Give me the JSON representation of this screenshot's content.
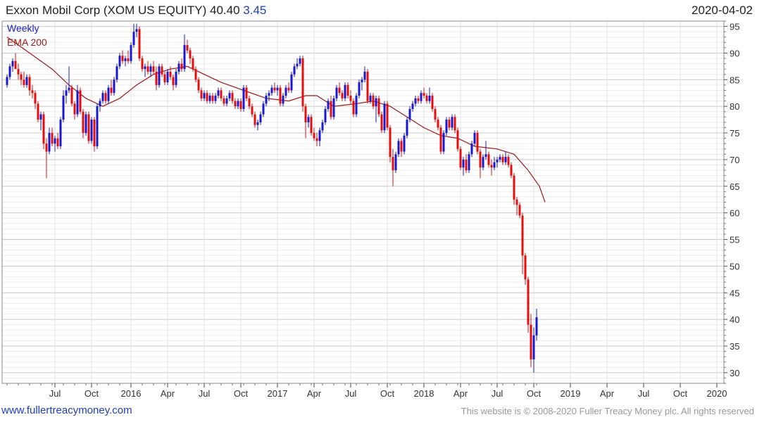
{
  "header": {
    "title": "Exxon Mobil Corp (XOM US EQUITY) 40.40",
    "change": "3.45",
    "date": "2020-04-02"
  },
  "footer": {
    "link": "www.fullertreacymoney.com",
    "copyright": "This website is © 2008-2020 Fuller Treacy Money plc. All rights reserved"
  },
  "colors": {
    "up": "#1a1acc",
    "down": "#e01010",
    "ema": "#a01818",
    "grid": "#d4d4d4"
  },
  "chart_data": {
    "type": "candlestick",
    "legend": [
      {
        "label": "Weekly",
        "color": "#1a1acc"
      },
      {
        "label": "EMA 200",
        "color": "#a01818"
      }
    ],
    "legend_position": "top-left",
    "grid": true,
    "ylim": [
      28,
      96
    ],
    "y_ticks": [
      30,
      35,
      40,
      45,
      50,
      55,
      60,
      65,
      70,
      75,
      80,
      85,
      90,
      95
    ],
    "x_ticks": [
      "Jul",
      "Oct",
      "2016",
      "Apr",
      "Jul",
      "Oct",
      "2017",
      "Apr",
      "Jul",
      "Oct",
      "2018",
      "Apr",
      "Jul",
      "Oct",
      "2019",
      "Apr",
      "Jul",
      "Oct",
      "2020"
    ],
    "x_tick_weeks": [
      17,
      30,
      44,
      57,
      70,
      83,
      96,
      109,
      122,
      135,
      148,
      161,
      174,
      187,
      200,
      213,
      226,
      239,
      252
    ],
    "candles": [
      [
        84.0,
        86.0,
        83.5,
        85.5
      ],
      [
        85.5,
        88.0,
        85.0,
        87.5
      ],
      [
        87.5,
        89.0,
        86.5,
        88.5
      ],
      [
        88.5,
        90.0,
        87.0,
        87.0
      ],
      [
        87.0,
        88.0,
        85.0,
        86.0
      ],
      [
        86.0,
        86.5,
        84.0,
        85.0
      ],
      [
        85.0,
        86.5,
        83.5,
        84.0
      ],
      [
        84.0,
        86.0,
        83.5,
        85.5
      ],
      [
        85.5,
        86.0,
        82.0,
        83.0
      ],
      [
        83.0,
        84.0,
        81.5,
        82.5
      ],
      [
        82.5,
        83.0,
        79.5,
        80.5
      ],
      [
        80.5,
        81.0,
        77.0,
        77.5
      ],
      [
        77.5,
        79.0,
        75.5,
        78.5
      ],
      [
        78.5,
        79.0,
        72.0,
        73.0
      ],
      [
        73.0,
        74.0,
        66.5,
        71.5
      ],
      [
        71.5,
        76.0,
        71.0,
        75.0
      ],
      [
        75.0,
        76.0,
        72.5,
        73.0
      ],
      [
        73.0,
        74.5,
        71.5,
        74.0
      ],
      [
        74.0,
        75.0,
        72.0,
        72.5
      ],
      [
        72.5,
        78.0,
        72.0,
        77.5
      ],
      [
        77.5,
        83.0,
        77.0,
        82.0
      ],
      [
        82.0,
        84.0,
        80.5,
        83.0
      ],
      [
        83.0,
        87.5,
        82.5,
        83.5
      ],
      [
        83.5,
        84.0,
        80.0,
        80.5
      ],
      [
        80.5,
        81.0,
        77.5,
        78.5
      ],
      [
        78.5,
        84.0,
        78.0,
        83.0
      ],
      [
        83.0,
        83.5,
        78.5,
        79.0
      ],
      [
        79.0,
        79.5,
        74.0,
        75.0
      ],
      [
        75.0,
        79.0,
        74.5,
        78.5
      ],
      [
        78.5,
        79.0,
        73.0,
        73.5
      ],
      [
        73.5,
        78.0,
        73.0,
        77.5
      ],
      [
        77.5,
        78.0,
        71.5,
        72.5
      ],
      [
        72.5,
        80.5,
        72.0,
        80.0
      ],
      [
        80.0,
        81.5,
        79.0,
        81.0
      ],
      [
        81.0,
        83.0,
        80.5,
        82.5
      ],
      [
        82.5,
        83.0,
        80.5,
        81.0
      ],
      [
        81.0,
        84.0,
        80.5,
        83.5
      ],
      [
        83.5,
        85.0,
        82.0,
        82.5
      ],
      [
        82.5,
        85.5,
        82.0,
        85.0
      ],
      [
        85.0,
        88.0,
        84.5,
        87.5
      ],
      [
        87.5,
        90.0,
        87.0,
        89.5
      ],
      [
        89.5,
        90.5,
        88.0,
        88.5
      ],
      [
        88.5,
        89.5,
        87.5,
        89.0
      ],
      [
        89.0,
        90.5,
        88.0,
        88.5
      ],
      [
        88.5,
        92.0,
        88.0,
        91.5
      ],
      [
        91.5,
        95.5,
        91.0,
        94.0
      ],
      [
        94.0,
        95.5,
        93.0,
        94.5
      ],
      [
        94.5,
        95.0,
        88.5,
        89.0
      ],
      [
        89.0,
        89.5,
        86.5,
        87.0
      ],
      [
        87.0,
        88.0,
        85.5,
        87.5
      ],
      [
        87.5,
        88.5,
        86.0,
        86.5
      ],
      [
        86.5,
        88.0,
        85.5,
        87.5
      ],
      [
        87.5,
        88.5,
        86.0,
        86.5
      ],
      [
        86.5,
        87.5,
        83.0,
        84.0
      ],
      [
        84.0,
        88.0,
        83.5,
        87.5
      ],
      [
        87.5,
        88.0,
        85.5,
        86.0
      ],
      [
        86.0,
        86.5,
        84.0,
        84.5
      ],
      [
        84.5,
        87.0,
        84.0,
        86.5
      ],
      [
        86.5,
        87.5,
        85.0,
        85.5
      ],
      [
        85.5,
        86.0,
        83.0,
        84.0
      ],
      [
        84.0,
        87.0,
        83.5,
        86.5
      ],
      [
        86.5,
        88.5,
        86.0,
        88.0
      ],
      [
        88.0,
        89.0,
        86.5,
        87.0
      ],
      [
        87.0,
        93.5,
        86.5,
        91.5
      ],
      [
        91.5,
        92.5,
        90.0,
        90.5
      ],
      [
        90.5,
        91.0,
        88.0,
        89.0
      ],
      [
        89.0,
        89.5,
        86.5,
        87.0
      ],
      [
        87.0,
        87.5,
        84.5,
        85.0
      ],
      [
        85.0,
        85.5,
        82.5,
        83.0
      ],
      [
        83.0,
        83.5,
        81.0,
        81.5
      ],
      [
        81.5,
        83.0,
        81.0,
        82.5
      ],
      [
        82.5,
        83.0,
        80.5,
        81.0
      ],
      [
        81.0,
        82.5,
        80.5,
        82.0
      ],
      [
        82.0,
        82.5,
        80.5,
        81.0
      ],
      [
        81.0,
        82.5,
        80.5,
        82.0
      ],
      [
        82.0,
        83.5,
        81.5,
        83.0
      ],
      [
        83.0,
        83.5,
        81.0,
        81.5
      ],
      [
        81.5,
        82.0,
        80.0,
        80.5
      ],
      [
        80.5,
        82.0,
        80.0,
        81.5
      ],
      [
        81.5,
        83.0,
        81.0,
        82.5
      ],
      [
        82.5,
        83.0,
        80.5,
        81.0
      ],
      [
        81.0,
        81.5,
        79.5,
        80.0
      ],
      [
        80.0,
        81.5,
        79.5,
        81.0
      ],
      [
        81.0,
        81.5,
        79.0,
        79.5
      ],
      [
        79.5,
        84.0,
        79.0,
        83.5
      ],
      [
        83.5,
        84.0,
        81.0,
        81.5
      ],
      [
        81.5,
        82.0,
        79.5,
        80.0
      ],
      [
        80.0,
        80.5,
        78.0,
        78.5
      ],
      [
        78.5,
        79.0,
        76.0,
        76.5
      ],
      [
        76.5,
        77.5,
        75.5,
        77.0
      ],
      [
        77.0,
        79.0,
        76.5,
        78.5
      ],
      [
        78.5,
        81.0,
        78.0,
        80.5
      ],
      [
        80.5,
        82.5,
        80.0,
        82.0
      ],
      [
        82.0,
        83.0,
        81.0,
        82.5
      ],
      [
        82.5,
        84.0,
        82.0,
        83.5
      ],
      [
        83.5,
        84.5,
        82.5,
        83.0
      ],
      [
        83.0,
        84.0,
        82.0,
        83.5
      ],
      [
        83.5,
        84.0,
        80.0,
        80.5
      ],
      [
        80.5,
        82.5,
        80.0,
        82.0
      ],
      [
        82.0,
        84.0,
        81.5,
        83.5
      ],
      [
        83.5,
        84.5,
        82.5,
        83.0
      ],
      [
        83.0,
        86.5,
        82.5,
        86.0
      ],
      [
        86.0,
        88.0,
        85.5,
        87.5
      ],
      [
        87.5,
        89.0,
        87.0,
        88.0
      ],
      [
        88.0,
        89.5,
        87.5,
        89.0
      ],
      [
        89.0,
        89.5,
        79.0,
        80.0
      ],
      [
        80.0,
        80.5,
        74.0,
        77.0
      ],
      [
        77.0,
        78.5,
        76.0,
        78.0
      ],
      [
        78.0,
        78.5,
        74.5,
        75.0
      ],
      [
        75.0,
        76.0,
        73.5,
        74.0
      ],
      [
        74.0,
        75.0,
        72.5,
        73.5
      ],
      [
        73.5,
        76.0,
        72.5,
        75.5
      ],
      [
        75.5,
        77.5,
        75.0,
        77.0
      ],
      [
        77.0,
        80.0,
        76.5,
        79.5
      ],
      [
        79.5,
        81.5,
        79.0,
        81.0
      ],
      [
        81.0,
        82.0,
        77.5,
        78.0
      ],
      [
        78.0,
        82.0,
        77.5,
        81.5
      ],
      [
        81.5,
        84.0,
        81.0,
        83.5
      ],
      [
        83.5,
        84.5,
        82.0,
        82.5
      ],
      [
        82.5,
        83.0,
        81.0,
        81.5
      ],
      [
        81.5,
        84.5,
        81.0,
        84.0
      ],
      [
        84.0,
        84.5,
        81.5,
        82.0
      ],
      [
        82.0,
        83.0,
        80.5,
        81.0
      ],
      [
        81.0,
        81.5,
        78.0,
        78.5
      ],
      [
        78.5,
        82.5,
        78.0,
        82.0
      ],
      [
        82.0,
        85.0,
        81.5,
        84.5
      ],
      [
        84.5,
        85.5,
        83.0,
        85.0
      ],
      [
        85.0,
        87.5,
        84.5,
        86.5
      ],
      [
        86.5,
        87.0,
        80.5,
        81.0
      ],
      [
        81.0,
        82.5,
        80.5,
        82.0
      ],
      [
        82.0,
        82.5,
        79.5,
        80.0
      ],
      [
        80.0,
        82.0,
        77.0,
        81.5
      ],
      [
        81.5,
        82.0,
        78.0,
        78.5
      ],
      [
        78.5,
        79.0,
        75.0,
        75.5
      ],
      [
        75.5,
        81.0,
        75.0,
        80.5
      ],
      [
        80.5,
        81.0,
        75.5,
        76.0
      ],
      [
        76.0,
        76.5,
        69.5,
        70.5
      ],
      [
        70.5,
        72.0,
        65.0,
        68.0
      ],
      [
        68.0,
        71.5,
        67.5,
        71.0
      ],
      [
        71.0,
        74.0,
        70.5,
        73.5
      ],
      [
        73.5,
        74.0,
        70.5,
        71.5
      ],
      [
        71.5,
        75.0,
        71.0,
        74.5
      ],
      [
        74.5,
        78.0,
        74.0,
        77.5
      ],
      [
        77.5,
        80.0,
        77.0,
        79.5
      ],
      [
        79.5,
        81.0,
        79.0,
        80.5
      ],
      [
        80.5,
        82.0,
        80.0,
        81.5
      ],
      [
        81.5,
        82.0,
        80.5,
        81.0
      ],
      [
        81.0,
        83.0,
        80.5,
        82.5
      ],
      [
        82.5,
        83.5,
        81.5,
        82.0
      ],
      [
        82.0,
        82.5,
        80.5,
        81.0
      ],
      [
        81.0,
        83.5,
        80.5,
        82.0
      ],
      [
        82.0,
        82.5,
        79.0,
        79.5
      ],
      [
        79.5,
        80.0,
        77.0,
        77.5
      ],
      [
        77.5,
        78.0,
        75.5,
        76.0
      ],
      [
        76.0,
        76.5,
        71.0,
        71.5
      ],
      [
        71.5,
        75.5,
        71.0,
        75.0
      ],
      [
        75.0,
        78.0,
        74.5,
        77.5
      ],
      [
        77.5,
        78.0,
        75.5,
        76.0
      ],
      [
        76.0,
        78.5,
        75.5,
        78.0
      ],
      [
        78.0,
        78.5,
        75.0,
        75.5
      ],
      [
        75.5,
        76.0,
        71.5,
        72.0
      ],
      [
        72.0,
        72.5,
        68.0,
        68.5
      ],
      [
        68.5,
        70.5,
        67.0,
        70.0
      ],
      [
        70.0,
        71.0,
        67.5,
        68.0
      ],
      [
        68.0,
        71.5,
        67.5,
        71.0
      ],
      [
        71.0,
        73.5,
        70.5,
        73.0
      ],
      [
        73.0,
        75.5,
        72.5,
        75.0
      ],
      [
        75.0,
        75.5,
        71.0,
        71.5
      ],
      [
        71.5,
        72.0,
        66.5,
        68.5
      ],
      [
        68.5,
        71.0,
        68.0,
        70.5
      ],
      [
        70.5,
        73.5,
        70.0,
        71.0
      ],
      [
        71.0,
        71.5,
        68.5,
        69.0
      ],
      [
        69.0,
        70.0,
        67.0,
        68.5
      ],
      [
        68.5,
        70.5,
        68.0,
        69.5
      ],
      [
        69.5,
        70.5,
        68.5,
        70.0
      ],
      [
        70.0,
        71.0,
        69.5,
        70.5
      ],
      [
        70.5,
        71.0,
        69.0,
        69.5
      ],
      [
        69.5,
        71.5,
        69.0,
        70.5
      ],
      [
        70.5,
        71.0,
        68.5,
        69.0
      ],
      [
        69.0,
        69.5,
        66.5,
        67.0
      ],
      [
        67.0,
        67.5,
        61.5,
        62.5
      ],
      [
        62.5,
        63.0,
        59.5,
        61.5
      ],
      [
        61.5,
        62.0,
        59.0,
        59.5
      ],
      [
        59.5,
        60.0,
        48.5,
        52.0
      ],
      [
        52.0,
        52.5,
        46.5,
        47.5
      ],
      [
        47.5,
        48.0,
        37.5,
        39.0
      ],
      [
        39.0,
        41.0,
        31.0,
        32.5
      ],
      [
        32.5,
        38.5,
        30.0,
        37.0
      ],
      [
        37.0,
        42.0,
        36.0,
        40.4
      ]
    ],
    "ema200": [
      [
        0,
        93.0
      ],
      [
        8,
        90.0
      ],
      [
        16,
        87.0
      ],
      [
        22,
        84.0
      ],
      [
        28,
        81.5
      ],
      [
        34,
        80.0
      ],
      [
        40,
        81.5
      ],
      [
        46,
        84.0
      ],
      [
        52,
        86.0
      ],
      [
        58,
        87.0
      ],
      [
        64,
        87.5
      ],
      [
        70,
        86.0
      ],
      [
        76,
        84.5
      ],
      [
        84,
        83.0
      ],
      [
        92,
        81.5
      ],
      [
        100,
        81.0
      ],
      [
        106,
        82.0
      ],
      [
        110,
        82.0
      ],
      [
        116,
        80.0
      ],
      [
        124,
        80.5
      ],
      [
        130,
        81.0
      ],
      [
        136,
        80.0
      ],
      [
        142,
        78.0
      ],
      [
        148,
        76.0
      ],
      [
        154,
        74.5
      ],
      [
        160,
        74.0
      ],
      [
        166,
        72.5
      ],
      [
        174,
        72.0
      ],
      [
        180,
        71.0
      ],
      [
        185,
        68.0
      ],
      [
        189,
        65.0
      ],
      [
        191,
        62.0
      ]
    ]
  }
}
